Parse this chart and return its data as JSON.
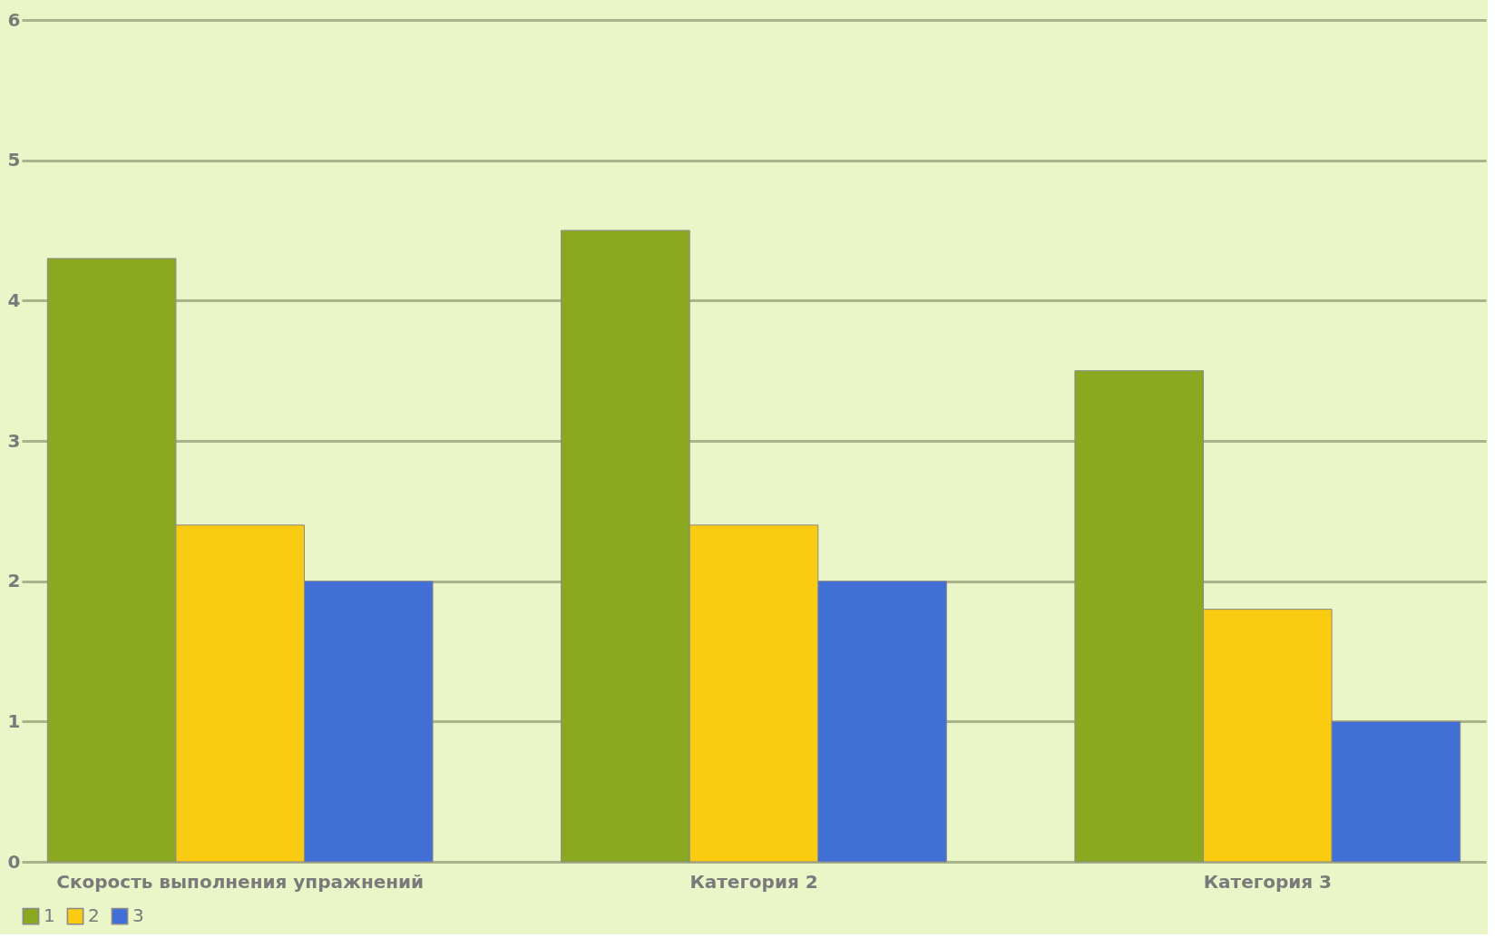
{
  "chart_data": {
    "type": "bar",
    "categories": [
      "Скорость выполнения упражнений",
      "Категория 2",
      "Категория 3"
    ],
    "series": [
      {
        "name": "1",
        "color": "#8aa820",
        "values": [
          4.3,
          4.5,
          3.5
        ]
      },
      {
        "name": "2",
        "color": "#f9cc12",
        "values": [
          2.4,
          2.4,
          1.8
        ]
      },
      {
        "name": "3",
        "color": "#426fd6",
        "values": [
          2.0,
          2.0,
          1.0
        ]
      }
    ],
    "ylim": [
      0,
      6
    ],
    "yticks": [
      0,
      1,
      2,
      3,
      4,
      5,
      6
    ],
    "grid": "y",
    "legend": "bottom"
  }
}
